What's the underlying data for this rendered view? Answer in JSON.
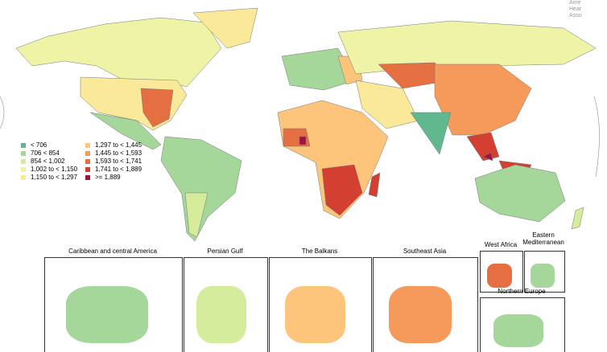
{
  "logo": {
    "lines": [
      "Ame",
      "Hear",
      "Asso"
    ]
  },
  "legend": {
    "items": [
      {
        "label": "< 706",
        "color": "#62b88e"
      },
      {
        "label": "706 < 854",
        "color": "#a5d79b"
      },
      {
        "label": "854 < 1,002",
        "color": "#d6ec9d"
      },
      {
        "label": "1,002 to < 1,150",
        "color": "#eef3a6"
      },
      {
        "label": "1,150 to < 1,297",
        "color": "#fbe99a"
      },
      {
        "label": "1,297 to < 1,445",
        "color": "#fdc57b"
      },
      {
        "label": "1,445 to < 1,593",
        "color": "#f59a5a"
      },
      {
        "label": "1,593 to < 1,741",
        "color": "#e56f41"
      },
      {
        "label": "1,741 to < 1,889",
        "color": "#d33f31"
      },
      {
        "label": ">= 1,889",
        "color": "#a3123f"
      }
    ]
  },
  "insets": [
    {
      "title": "Caribbean and central America"
    },
    {
      "title": "Persian Gulf"
    },
    {
      "title": "The Balkans"
    },
    {
      "title": "Southeast Asia"
    },
    {
      "title": "West Africa"
    },
    {
      "title": "Eastern Mediterranean"
    },
    {
      "title": "Northern Europe"
    }
  ]
}
